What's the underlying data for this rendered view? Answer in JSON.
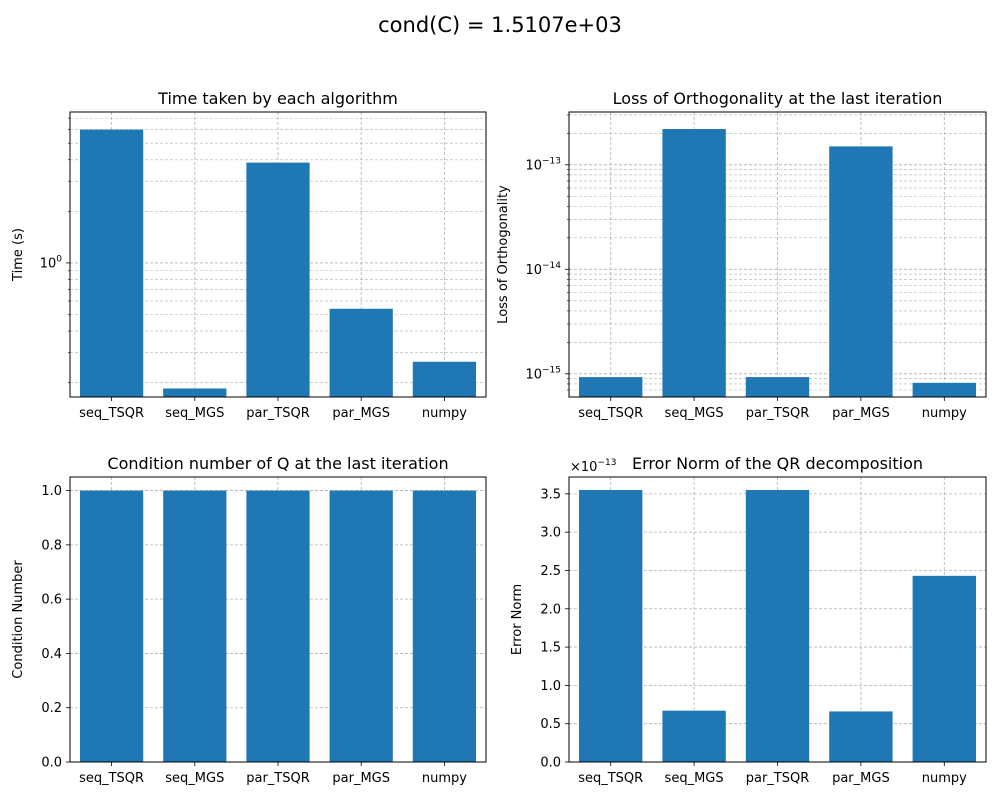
{
  "figure": {
    "suptitle": "cond(C) = 1.5107e+03",
    "bar_color": "#1f77b4"
  },
  "chart_data": [
    {
      "type": "bar",
      "title": "Time taken by each algorithm",
      "xlabel": "",
      "ylabel": "Time (s)",
      "yscale": "log",
      "ylim": [
        0.165,
        7.6
      ],
      "yticks": [
        {
          "value": 1,
          "label": "10",
          "exp": "0"
        }
      ],
      "grid": true,
      "categories": [
        "seq_TSQR",
        "seq_MGS",
        "par_TSQR",
        "par_MGS",
        "numpy"
      ],
      "values": [
        6.0,
        0.185,
        3.85,
        0.54,
        0.265
      ]
    },
    {
      "type": "bar",
      "title": "Loss of Orthogonality at the last iteration",
      "xlabel": "",
      "ylabel": "Loss of Orthogonality",
      "yscale": "log",
      "ylim": [
        6e-16,
        3.2e-13
      ],
      "yticks": [
        {
          "value": 1e-15,
          "label": "10",
          "exp": "−15"
        },
        {
          "value": 1e-14,
          "label": "10",
          "exp": "−14"
        },
        {
          "value": 1e-13,
          "label": "10",
          "exp": "−13"
        }
      ],
      "grid": true,
      "categories": [
        "seq_TSQR",
        "seq_MGS",
        "par_TSQR",
        "par_MGS",
        "numpy"
      ],
      "values": [
        9.3e-16,
        2.2e-13,
        9.3e-16,
        1.5e-13,
        8.2e-16
      ]
    },
    {
      "type": "bar",
      "title": "Condition number of Q at the last iteration",
      "xlabel": "",
      "ylabel": "Condition Number",
      "yscale": "linear",
      "ylim": [
        0,
        1.05
      ],
      "yticks": [
        {
          "value": 0.0,
          "label": "0.0"
        },
        {
          "value": 0.2,
          "label": "0.2"
        },
        {
          "value": 0.4,
          "label": "0.4"
        },
        {
          "value": 0.6,
          "label": "0.6"
        },
        {
          "value": 0.8,
          "label": "0.8"
        },
        {
          "value": 1.0,
          "label": "1.0"
        }
      ],
      "grid": true,
      "categories": [
        "seq_TSQR",
        "seq_MGS",
        "par_TSQR",
        "par_MGS",
        "numpy"
      ],
      "values": [
        1.0,
        1.0,
        1.0,
        1.0,
        1.0
      ]
    },
    {
      "type": "bar",
      "title": "Error Norm of the QR decomposition",
      "xlabel": "",
      "ylabel": "Error Norm",
      "yscale": "linear",
      "offset_text": {
        "label": "×10",
        "exp": "−13"
      },
      "ylim": [
        0,
        3.72
      ],
      "yticks": [
        {
          "value": 0.0,
          "label": "0.0"
        },
        {
          "value": 0.5,
          "label": "0.5"
        },
        {
          "value": 1.0,
          "label": "1.0"
        },
        {
          "value": 1.5,
          "label": "1.5"
        },
        {
          "value": 2.0,
          "label": "2.0"
        },
        {
          "value": 2.5,
          "label": "2.5"
        },
        {
          "value": 3.0,
          "label": "3.0"
        },
        {
          "value": 3.5,
          "label": "3.5"
        }
      ],
      "grid": true,
      "categories": [
        "seq_TSQR",
        "seq_MGS",
        "par_TSQR",
        "par_MGS",
        "numpy"
      ],
      "values": [
        3.55,
        0.67,
        3.55,
        0.66,
        2.43
      ]
    }
  ]
}
